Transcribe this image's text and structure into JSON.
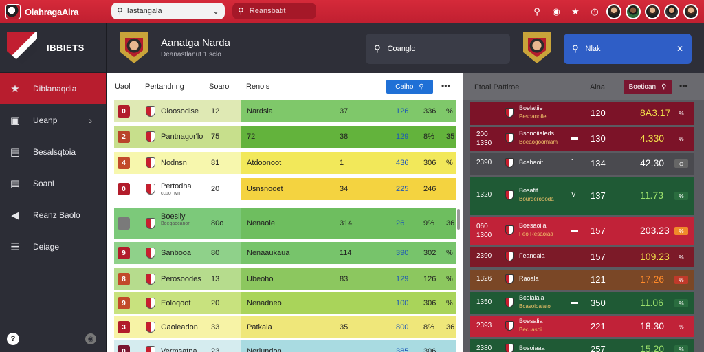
{
  "app": {
    "name": "OlahragaAira"
  },
  "top_search": {
    "text": "Iastangala",
    "dropdown_icon": "chevron-down-icon"
  },
  "top_search2": {
    "text": "Reansbatit"
  },
  "top_icons": [
    "search-icon",
    "globe-icon",
    "trophy-icon",
    "clock-icon"
  ],
  "avatars": 5,
  "sidebar": {
    "title": "IBBIETS",
    "items": [
      {
        "label": "Diblanaqdia",
        "icon": "star-icon",
        "active": true
      },
      {
        "label": "Ueanp",
        "icon": "image-icon",
        "chevron": true
      },
      {
        "label": "Besalsqtoia",
        "icon": "chart-icon"
      },
      {
        "label": "Soanl",
        "icon": "list-icon"
      },
      {
        "label": "Reanz Baolo",
        "icon": "arrow-icon"
      },
      {
        "label": "Deiage",
        "icon": "layers-icon"
      }
    ],
    "help": "?",
    "eye": "◉"
  },
  "header": {
    "player_name": "Aanatga Narda",
    "player_sub": "Deanastlanut 1 sclo",
    "search_pill": "Coanglo",
    "filter_pill": "Nlak",
    "filter_close": "✕"
  },
  "table": {
    "headers": [
      "Uaol",
      "Pertandring",
      "Soaro",
      "Renols"
    ],
    "button_label": "Caiho",
    "more": "•••",
    "rows": [
      {
        "rank": "0",
        "rank_color": "#b21c2b",
        "name": "Oioosodise",
        "sub": "",
        "score": "12",
        "club": "Nardsia",
        "v1": "37",
        "v2": "126",
        "v3": "336",
        "v4": "%",
        "color": "#dfe9b4",
        "color2": "#7fc86a"
      },
      {
        "rank": "2",
        "rank_color": "#b9442a",
        "name": "Pantnagor'lo",
        "sub": "",
        "score": "75",
        "club": "72",
        "v1": "38",
        "v2": "129",
        "v3": "8%",
        "v4": "35",
        "color": "#c7df8c",
        "color2": "#63b33c"
      },
      {
        "rank": "4",
        "rank_color": "#c24a2a",
        "name": "Nodnsn",
        "sub": "",
        "score": "81",
        "club": "Atdoonoot",
        "v1": "1",
        "v2": "436",
        "v3": "306",
        "v4": "%",
        "color": "#f7f7ad",
        "color2": "#f2e85a"
      },
      {
        "rank": "0",
        "rank_color": "#b21c2b",
        "name": "Pertodha",
        "sub": "ccuo nvn",
        "score": "20",
        "club": "Usnsnooet",
        "v1": "34",
        "v2": "225",
        "v3": "246",
        "v4": "",
        "color": "#ffffff",
        "color2": "#f4d340"
      },
      {
        "rank": "",
        "rank_color": "#7a7a7a",
        "name": "Boesliy",
        "sub": "Beeqaocanor",
        "score": "80o",
        "club": "Nenaoie",
        "v1": "314",
        "v2": "26",
        "v3": "9%",
        "v4": "36",
        "color": "#7cc97a",
        "color2": "#6ebe5f"
      },
      {
        "rank": "9",
        "rank_color": "#b21c2b",
        "name": "Sanbooa",
        "sub": "",
        "score": "80",
        "club": "Nenaaukaua",
        "v1": "114",
        "v2": "390",
        "v3": "302",
        "v4": "%",
        "color": "#8fd18a",
        "color2": "#77c46b"
      },
      {
        "rank": "8",
        "rank_color": "#c24a2a",
        "name": "Perosoodes",
        "sub": "",
        "score": "13",
        "club": "Ubeoho",
        "v1": "83",
        "v2": "129",
        "v3": "126",
        "v4": "%",
        "color": "#b6dc8d",
        "color2": "#8cc75f"
      },
      {
        "rank": "9",
        "rank_color": "#c24a2a",
        "name": "Eoloqoot",
        "sub": "",
        "score": "20",
        "club": "Nenadneo",
        "v1": "",
        "v2": "100",
        "v3": "306",
        "v4": "%",
        "color": "#c8e27e",
        "color2": "#a9d45a"
      },
      {
        "rank": "3",
        "rank_color": "#b21c2b",
        "name": "Gaoieadon",
        "sub": "",
        "score": "33",
        "club": "Patkaia",
        "v1": "35",
        "v2": "800",
        "v3": "8%",
        "v4": "36",
        "color": "#f7f3a6",
        "color2": "#efe77a"
      },
      {
        "rank": "0",
        "rank_color": "#7a1630",
        "name": "Vermsatpa",
        "sub": "",
        "score": "23",
        "club": "Nerlundon",
        "v1": "",
        "v2": "385",
        "v3": "306",
        "v4": "",
        "color": "#d5ecef",
        "color2": "#a9dbe1"
      }
    ]
  },
  "right": {
    "title": "Ftoal Pattiroe",
    "col": "Aina",
    "button_label": "Boetioan",
    "more": "•••",
    "rows": [
      {
        "a": "",
        "a2": "",
        "n": "Boelatiie",
        "s": "Pesdanoile",
        "mark": "",
        "b": "120",
        "c": "8A3.17",
        "tag": "%",
        "bg": "#7c1328",
        "ccolor": "#f2e04a",
        "tagbg": "#7c1328",
        "h": 34
      },
      {
        "a": "200",
        "a2": "1330",
        "n": "Bsonoiialeds",
        "s": "Boeaogoomlam",
        "mark": "▬",
        "b": "130",
        "c": "4.330",
        "tag": "%",
        "bg": "#7c1328",
        "ccolor": "#f2e04a",
        "tagbg": "#7c1328",
        "h": 34
      },
      {
        "a": "2390",
        "a2": "",
        "n": "Bcebaoit",
        "s": "",
        "mark": "ˇ",
        "b": "134",
        "c": "42.30",
        "tag": "⊙",
        "bg": "#4a4a4f",
        "ccolor": "#ffffff",
        "tagbg": "#666",
        "h": 32
      },
      {
        "a": "1320",
        "a2": "",
        "n": "Bosafit",
        "s": "Bourderoooda",
        "mark": "V",
        "b": "137",
        "c": "11.73",
        "tag": "%",
        "bg": "#1f5a35",
        "ccolor": "#9be06c",
        "tagbg": "#2a6d3f",
        "h": 56
      },
      {
        "a": "060",
        "a2": "1300",
        "n": "Boesaoiia",
        "s": "Feo Resaoiaa",
        "mark": "▬",
        "b": "157",
        "c": "203.23",
        "tag": "%",
        "bg": "#c12238",
        "ccolor": "#ffffff",
        "tagbg": "#f08a2a",
        "h": 40
      },
      {
        "a": "2390",
        "a2": "",
        "n": "Feandaia",
        "s": "",
        "mark": "",
        "b": "157",
        "c": "109.23",
        "tag": "%",
        "bg": "#7c1a28",
        "ccolor": "#f2e04a",
        "tagbg": "#7c1a28",
        "h": 30
      },
      {
        "a": "1326",
        "a2": "",
        "n": "Raoala",
        "s": "",
        "mark": "",
        "b": "121",
        "c": "17.26",
        "tag": "%",
        "bg": "#7a4726",
        "ccolor": "#ff8a2a",
        "tagbg": "#c03a2a",
        "h": 30
      },
      {
        "a": "1350",
        "a2": "",
        "n": "Bcolaiala",
        "s": "Bcasoioaiato",
        "mark": "▬",
        "b": "350",
        "c": "11.06",
        "tag": "%",
        "bg": "#1f5a35",
        "ccolor": "#9be06c",
        "tagbg": "#2a6d3f",
        "h": 32
      },
      {
        "a": "2393",
        "a2": "",
        "n": "Boesalia",
        "s": "Becuasoi",
        "mark": "",
        "b": "221",
        "c": "18.30",
        "tag": "%",
        "bg": "#c12238",
        "ccolor": "#ffffff",
        "tagbg": "#c12238",
        "h": 30
      },
      {
        "a": "2380",
        "a2": "",
        "n": "Bosoiaaa",
        "s": "",
        "mark": "",
        "b": "257",
        "c": "15.20",
        "tag": "%",
        "bg": "#1f5a35",
        "ccolor": "#9be06c",
        "tagbg": "#2a6d3f",
        "h": 30
      }
    ]
  }
}
